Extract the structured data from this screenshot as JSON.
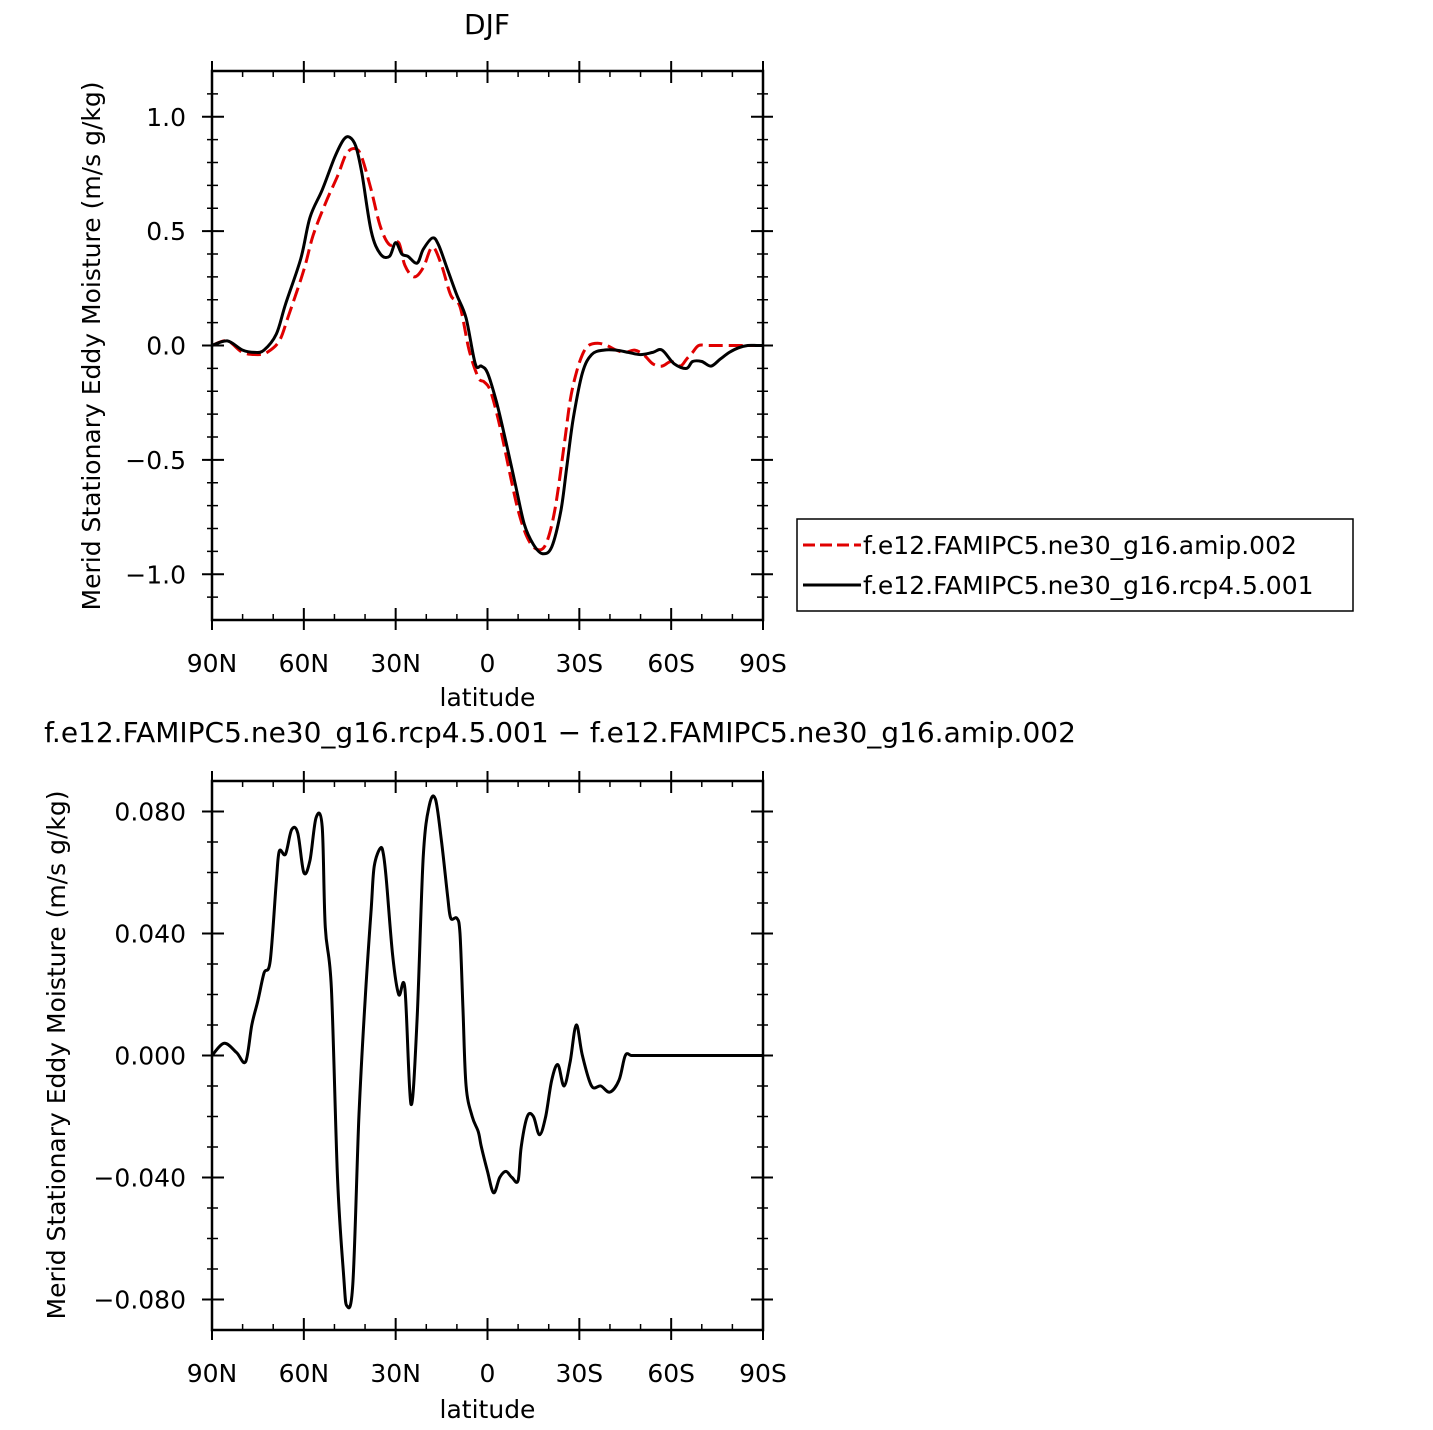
{
  "chart_data": [
    {
      "type": "line",
      "title": "DJF",
      "xlabel": "latitude",
      "ylabel": "Merid Stationary Eddy Moisture (m/s g/kg)",
      "xlim": [
        90,
        -90
      ],
      "ylim": [
        -1.2,
        1.2
      ],
      "x_ticks": [
        {
          "value": 90,
          "label": "90N"
        },
        {
          "value": 60,
          "label": "60N"
        },
        {
          "value": 30,
          "label": "30N"
        },
        {
          "value": 0,
          "label": "0"
        },
        {
          "value": -30,
          "label": "30S"
        },
        {
          "value": -60,
          "label": "60S"
        },
        {
          "value": -90,
          "label": "90S"
        }
      ],
      "y_ticks": [
        {
          "value": 1.0,
          "label": "1.0"
        },
        {
          "value": 0.5,
          "label": "0.5"
        },
        {
          "value": 0.0,
          "label": "0.0"
        },
        {
          "value": -0.5,
          "label": "−0.5"
        },
        {
          "value": -1.0,
          "label": "−1.0"
        }
      ],
      "legend_position": "right",
      "series": [
        {
          "name": "f.e12.FAMIPC5.ne30_g16.amip.002",
          "color": "#e00000",
          "dash": "dashed",
          "x": [
            90,
            85,
            80,
            75,
            72,
            68,
            65,
            60,
            57,
            53,
            49,
            46,
            43,
            41,
            38,
            35,
            32,
            29,
            27,
            24,
            21,
            18,
            15,
            12,
            9,
            6,
            3,
            1,
            -1,
            -4,
            -7,
            -10,
            -13,
            -16,
            -19,
            -22,
            -25,
            -27,
            -29,
            -31,
            -33,
            -36,
            -39,
            -42,
            -45,
            -48,
            -51,
            -54,
            -57,
            -60,
            -63,
            -65,
            -67,
            -69,
            -72,
            -75,
            -78,
            -81,
            -84,
            -87,
            -90
          ],
          "y": [
            0.0,
            0.02,
            -0.03,
            -0.04,
            -0.03,
            0.02,
            0.13,
            0.33,
            0.48,
            0.62,
            0.74,
            0.84,
            0.86,
            0.82,
            0.68,
            0.52,
            0.44,
            0.45,
            0.35,
            0.3,
            0.34,
            0.43,
            0.35,
            0.22,
            0.17,
            -0.02,
            -0.14,
            -0.16,
            -0.2,
            -0.35,
            -0.54,
            -0.72,
            -0.84,
            -0.89,
            -0.87,
            -0.72,
            -0.44,
            -0.24,
            -0.12,
            -0.04,
            0.0,
            0.01,
            0.0,
            -0.02,
            -0.03,
            -0.02,
            -0.04,
            -0.08,
            -0.09,
            -0.07,
            -0.09,
            -0.06,
            -0.03,
            0.0,
            0.0,
            0.0,
            0.0,
            0.0,
            0.0,
            0.0,
            0.0
          ]
        },
        {
          "name": "f.e12.FAMIPC5.ne30_g16.rcp4.5.001",
          "color": "#000000",
          "dash": "solid",
          "x": [
            90,
            85,
            80,
            76,
            73,
            69,
            66,
            61,
            58,
            54,
            50,
            47,
            45,
            43,
            41,
            38,
            35,
            32,
            30,
            28,
            26,
            23,
            21,
            18,
            16,
            13,
            10,
            7,
            4,
            2,
            0,
            -3,
            -6,
            -9,
            -12,
            -15,
            -18,
            -21,
            -24,
            -26,
            -28,
            -31,
            -34,
            -38,
            -42,
            -46,
            -50,
            -54,
            -57,
            -61,
            -65,
            -67,
            -70,
            -73,
            -76,
            -79,
            -82,
            -85,
            -88,
            -90
          ],
          "y": [
            0.0,
            0.02,
            -0.02,
            -0.03,
            -0.02,
            0.05,
            0.18,
            0.38,
            0.56,
            0.68,
            0.82,
            0.9,
            0.91,
            0.87,
            0.75,
            0.5,
            0.4,
            0.39,
            0.45,
            0.4,
            0.39,
            0.36,
            0.42,
            0.47,
            0.44,
            0.33,
            0.22,
            0.12,
            -0.08,
            -0.09,
            -0.12,
            -0.25,
            -0.42,
            -0.6,
            -0.78,
            -0.87,
            -0.91,
            -0.88,
            -0.72,
            -0.52,
            -0.32,
            -0.12,
            -0.04,
            -0.02,
            -0.02,
            -0.03,
            -0.04,
            -0.03,
            -0.02,
            -0.08,
            -0.1,
            -0.07,
            -0.07,
            -0.09,
            -0.06,
            -0.03,
            -0.01,
            0.0,
            0.0,
            0.0
          ]
        }
      ]
    },
    {
      "type": "line",
      "title": "f.e12.FAMIPC5.ne30_g16.rcp4.5.001 − f.e12.FAMIPC5.ne30_g16.amip.002",
      "xlabel": "latitude",
      "ylabel": "Merid Stationary Eddy Moisture (m/s g/kg)",
      "xlim": [
        90,
        -90
      ],
      "ylim": [
        -0.09,
        0.09
      ],
      "x_ticks": [
        {
          "value": 90,
          "label": "90N"
        },
        {
          "value": 60,
          "label": "60N"
        },
        {
          "value": 30,
          "label": "30N"
        },
        {
          "value": 0,
          "label": "0"
        },
        {
          "value": -30,
          "label": "30S"
        },
        {
          "value": -60,
          "label": "60S"
        },
        {
          "value": -90,
          "label": "90S"
        }
      ],
      "y_ticks": [
        {
          "value": 0.08,
          "label": "0.080"
        },
        {
          "value": 0.04,
          "label": "0.040"
        },
        {
          "value": 0.0,
          "label": "0.000"
        },
        {
          "value": -0.04,
          "label": "−0.040"
        },
        {
          "value": -0.08,
          "label": "−0.080"
        }
      ],
      "series": [
        {
          "color": "#000000",
          "dash": "solid",
          "x": [
            90,
            86,
            82,
            79,
            77,
            75,
            73,
            71,
            69,
            68,
            66,
            64,
            62,
            60,
            58,
            56,
            54,
            53,
            51,
            49,
            47,
            46,
            44,
            42,
            40,
            38,
            37,
            35,
            34,
            33,
            31,
            29,
            27,
            25,
            23,
            21,
            19,
            17,
            15,
            13,
            12,
            10,
            9,
            8,
            7,
            5,
            3,
            2,
            0,
            -2,
            -4,
            -6,
            -8,
            -10,
            -11,
            -13,
            -15,
            -17,
            -19,
            -21,
            -23,
            -25,
            -27,
            -29,
            -31,
            -34,
            -37,
            -40,
            -43,
            -45,
            -47,
            -49,
            -52,
            -55,
            -58,
            -61,
            -64,
            -66,
            -68,
            -70,
            -72,
            -74,
            -76,
            -78,
            -80,
            -82,
            -84,
            -86,
            -88,
            -90
          ],
          "y": [
            0.0,
            0.004,
            0.001,
            -0.002,
            0.01,
            0.018,
            0.027,
            0.031,
            0.057,
            0.067,
            0.066,
            0.074,
            0.073,
            0.06,
            0.064,
            0.078,
            0.075,
            0.042,
            0.022,
            -0.04,
            -0.072,
            -0.082,
            -0.075,
            -0.02,
            0.018,
            0.048,
            0.062,
            0.068,
            0.066,
            0.057,
            0.033,
            0.02,
            0.022,
            -0.016,
            0.012,
            0.065,
            0.082,
            0.084,
            0.07,
            0.052,
            0.045,
            0.045,
            0.04,
            0.015,
            -0.01,
            -0.02,
            -0.025,
            -0.03,
            -0.038,
            -0.045,
            -0.04,
            -0.038,
            -0.04,
            -0.041,
            -0.03,
            -0.02,
            -0.02,
            -0.026,
            -0.02,
            -0.008,
            -0.003,
            -0.01,
            -0.002,
            0.01,
            0.0,
            -0.01,
            -0.01,
            -0.012,
            -0.008,
            0.0,
            0.0,
            0.0,
            0.0,
            0.0,
            0.0,
            0.0,
            0.0,
            0.0,
            0.0,
            0.0,
            0.0,
            0.0,
            0.0,
            0.0,
            0.0,
            0.0,
            0.0,
            0.0,
            0.0,
            0.0
          ]
        }
      ]
    }
  ]
}
